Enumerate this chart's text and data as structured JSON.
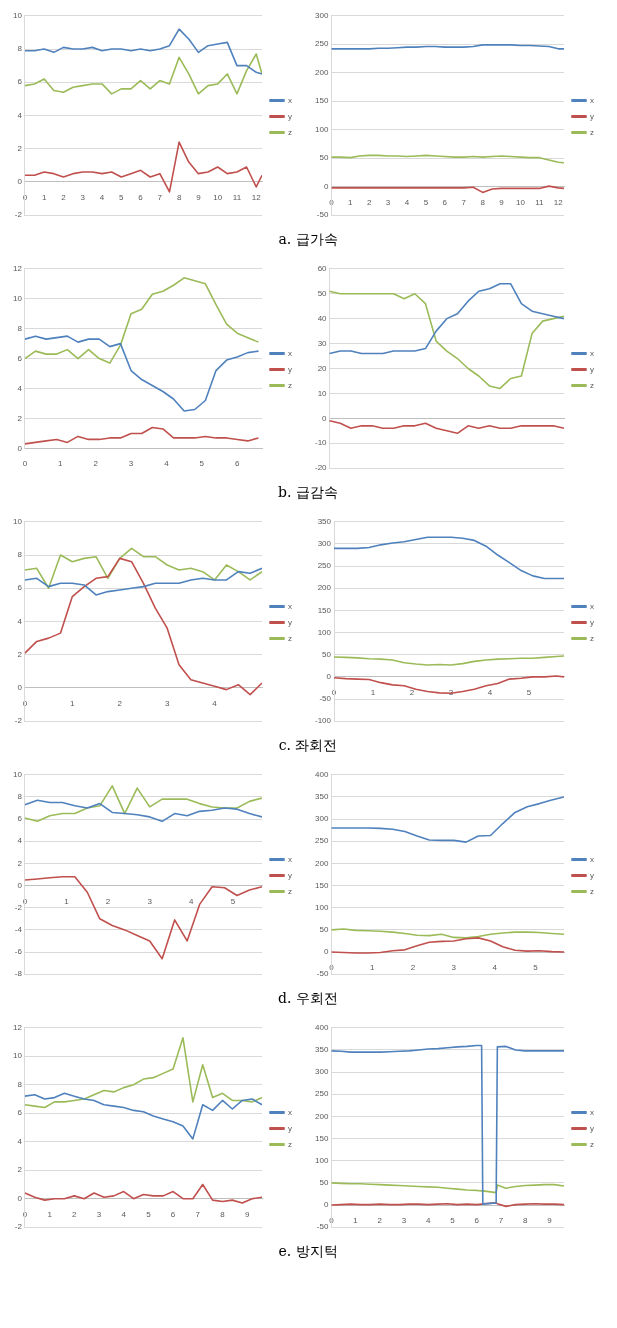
{
  "chart_data": [
    {
      "type": "line",
      "x": [
        0,
        0.5,
        1,
        1.5,
        2,
        2.5,
        3,
        3.5,
        4,
        4.5,
        5,
        5.5,
        6,
        6.5,
        7,
        7.5,
        8,
        8.5,
        9,
        9.5,
        10,
        10.5,
        11,
        11.5,
        12,
        12.3
      ],
      "xlim": [
        0,
        12.3
      ],
      "xticks": [
        0,
        1,
        2,
        3,
        4,
        5,
        6,
        7,
        8,
        9,
        10,
        11,
        12
      ],
      "ylim": [
        -2,
        10
      ],
      "yticks": [
        -2,
        0,
        2,
        4,
        6,
        8,
        10
      ],
      "grid": "y",
      "legend": "right",
      "marker": "none",
      "line_style": "solid",
      "annotations": [
        "a. 급가속"
      ],
      "series": [
        {
          "name": "x",
          "color": "#4f81bd",
          "values": [
            7.9,
            7.9,
            8.0,
            7.8,
            8.1,
            8.0,
            8.0,
            8.1,
            7.9,
            8.0,
            8.0,
            7.9,
            8.0,
            7.9,
            8.0,
            8.2,
            9.2,
            8.6,
            7.8,
            8.2,
            8.3,
            8.4,
            7.0,
            7.0,
            6.6,
            6.5
          ]
        },
        {
          "name": "y",
          "color": "#c0504d",
          "values": [
            0.4,
            0.4,
            0.6,
            0.5,
            0.3,
            0.5,
            0.6,
            0.6,
            0.5,
            0.6,
            0.3,
            0.5,
            0.7,
            0.3,
            0.5,
            -0.6,
            2.4,
            1.2,
            0.5,
            0.6,
            0.9,
            0.5,
            0.6,
            0.9,
            -0.3,
            0.4
          ]
        },
        {
          "name": "z",
          "color": "#9bbb59",
          "values": [
            5.8,
            5.9,
            6.2,
            5.5,
            5.4,
            5.7,
            5.8,
            5.9,
            5.9,
            5.3,
            5.6,
            5.6,
            6.1,
            5.6,
            6.1,
            5.9,
            7.5,
            6.5,
            5.3,
            5.8,
            5.9,
            6.5,
            5.3,
            6.7,
            7.7,
            6.5
          ]
        }
      ]
    },
    {
      "type": "line",
      "x": [
        0,
        0.5,
        1,
        1.5,
        2,
        2.5,
        3,
        3.5,
        4,
        4.5,
        5,
        5.5,
        6,
        6.5,
        7,
        7.5,
        8,
        8.5,
        9,
        9.5,
        10,
        10.5,
        11,
        11.5,
        12,
        12.3
      ],
      "xlim": [
        0,
        12.3
      ],
      "xticks": [
        0,
        1,
        2,
        3,
        4,
        5,
        6,
        7,
        8,
        9,
        10,
        11,
        12
      ],
      "ylim": [
        -50,
        300
      ],
      "yticks": [
        -50,
        0,
        50,
        100,
        150,
        200,
        250,
        300
      ],
      "grid": "y",
      "legend": "right",
      "marker": "none",
      "line_style": "solid",
      "series": [
        {
          "name": "x",
          "color": "#4f81bd",
          "values": [
            242,
            242,
            242,
            242,
            242,
            243,
            243,
            244,
            245,
            245,
            246,
            246,
            245,
            245,
            245,
            246,
            249,
            249,
            249,
            249,
            248,
            248,
            247,
            246,
            242,
            242
          ]
        },
        {
          "name": "y",
          "color": "#c0504d",
          "values": [
            -2,
            -2,
            -2,
            -2,
            -2,
            -2,
            -2,
            -2,
            -2,
            -2,
            -2,
            -2,
            -2,
            -2,
            -2,
            -1,
            -10,
            -4,
            -3,
            -3,
            -3,
            -3,
            -3,
            1,
            -2,
            -3
          ]
        },
        {
          "name": "z",
          "color": "#9bbb59",
          "values": [
            52,
            52,
            51,
            54,
            55,
            55,
            54,
            54,
            53,
            54,
            55,
            54,
            53,
            52,
            52,
            53,
            52,
            53,
            54,
            53,
            52,
            51,
            51,
            47,
            43,
            42
          ]
        }
      ]
    },
    {
      "type": "line",
      "x": [
        0,
        0.3,
        0.6,
        0.9,
        1.2,
        1.5,
        1.8,
        2.1,
        2.4,
        2.7,
        3.0,
        3.3,
        3.6,
        3.9,
        4.2,
        4.5,
        4.8,
        5.1,
        5.4,
        5.7,
        6.0,
        6.3,
        6.6
      ],
      "xlim": [
        0,
        6.7
      ],
      "xticks": [
        0,
        1,
        2,
        3,
        4,
        5,
        6
      ],
      "ylim": [
        0,
        12
      ],
      "yticks": [
        0,
        2,
        4,
        6,
        8,
        10,
        12
      ],
      "grid": "y",
      "legend": "right",
      "marker": "none",
      "line_style": "solid",
      "annotations": [
        "b. 급감속"
      ],
      "series": [
        {
          "name": "x",
          "color": "#4f81bd",
          "values": [
            7.3,
            7.5,
            7.3,
            7.4,
            7.5,
            7.1,
            7.3,
            7.3,
            6.8,
            7.0,
            5.2,
            4.6,
            4.2,
            3.8,
            3.3,
            2.5,
            2.6,
            3.2,
            5.2,
            5.9,
            6.1,
            6.4,
            6.5
          ]
        },
        {
          "name": "y",
          "color": "#c0504d",
          "values": [
            0.3,
            0.4,
            0.5,
            0.6,
            0.4,
            0.8,
            0.6,
            0.6,
            0.7,
            0.7,
            1.0,
            1.0,
            1.4,
            1.3,
            0.7,
            0.7,
            0.7,
            0.8,
            0.7,
            0.7,
            0.6,
            0.5,
            0.7
          ]
        },
        {
          "name": "z",
          "color": "#9bbb59",
          "values": [
            6.0,
            6.5,
            6.3,
            6.3,
            6.6,
            6.0,
            6.6,
            6.0,
            5.7,
            6.9,
            9.0,
            9.3,
            10.3,
            10.5,
            10.9,
            11.4,
            11.2,
            11.0,
            9.6,
            8.3,
            7.7,
            7.4,
            7.1
          ]
        }
      ]
    },
    {
      "type": "line",
      "categories": [
        null,
        null,
        null,
        null,
        null,
        null,
        null,
        null,
        null,
        null,
        null,
        null,
        null,
        null,
        null,
        null,
        null,
        null,
        null,
        null,
        null,
        null,
        null
      ],
      "ylim": [
        -20,
        60
      ],
      "yticks": [
        -20,
        -10,
        0,
        10,
        20,
        30,
        40,
        50,
        60
      ],
      "grid": "y",
      "legend": "right",
      "marker": "none",
      "line_style": "solid",
      "series": [
        {
          "name": "x",
          "color": "#4f81bd",
          "values": [
            26,
            27,
            27,
            26,
            26,
            26,
            27,
            27,
            27,
            28,
            35,
            40,
            42,
            47,
            51,
            52,
            54,
            54,
            46,
            43,
            42,
            41,
            40
          ]
        },
        {
          "name": "y",
          "color": "#c0504d",
          "values": [
            -1,
            -2,
            -4,
            -3,
            -3,
            -4,
            -4,
            -3,
            -3,
            -2,
            -4,
            -5,
            -6,
            -3,
            -4,
            -3,
            -4,
            -4,
            -3,
            -3,
            -3,
            -3,
            -4
          ]
        },
        {
          "name": "z",
          "color": "#9bbb59",
          "values": [
            51,
            50,
            50,
            50,
            50,
            50,
            50,
            48,
            50,
            46,
            31,
            27,
            24,
            20,
            17,
            13,
            12,
            16,
            17,
            34,
            39,
            40,
            41
          ]
        }
      ]
    },
    {
      "type": "line",
      "x": [
        0,
        0.25,
        0.5,
        0.75,
        1,
        1.25,
        1.5,
        1.75,
        2,
        2.25,
        2.5,
        2.75,
        3,
        3.25,
        3.5,
        3.75,
        4,
        4.25,
        4.5,
        4.75,
        5
      ],
      "xlim": [
        0,
        5
      ],
      "xticks": [
        0,
        1,
        2,
        3,
        4
      ],
      "ylim": [
        -2,
        10
      ],
      "yticks": [
        -2,
        0,
        2,
        4,
        6,
        8,
        10
      ],
      "grid": "y",
      "legend": "right",
      "marker": "none",
      "line_style": "solid",
      "annotations": [
        "c. 좌회전"
      ],
      "series": [
        {
          "name": "x",
          "color": "#4f81bd",
          "values": [
            6.5,
            6.6,
            6.1,
            6.3,
            6.3,
            6.2,
            5.6,
            5.8,
            5.9,
            6.0,
            6.1,
            6.3,
            6.3,
            6.3,
            6.5,
            6.6,
            6.5,
            6.5,
            7.0,
            6.9,
            7.2
          ]
        },
        {
          "name": "y",
          "color": "#c0504d",
          "values": [
            2.1,
            2.8,
            3.0,
            3.3,
            5.5,
            6.1,
            6.6,
            6.7,
            7.8,
            7.6,
            6.3,
            4.8,
            3.6,
            1.4,
            0.5,
            0.3,
            0.1,
            -0.1,
            0.2,
            -0.4,
            0.3
          ]
        },
        {
          "name": "z",
          "color": "#9bbb59",
          "values": [
            7.1,
            7.2,
            6.0,
            8.0,
            7.6,
            7.8,
            7.9,
            6.6,
            7.8,
            8.4,
            7.9,
            7.9,
            7.4,
            7.1,
            7.2,
            7.0,
            6.5,
            7.4,
            7.0,
            6.5,
            7.0
          ]
        }
      ]
    },
    {
      "type": "line",
      "x": [
        0,
        0.3,
        0.6,
        0.9,
        1.2,
        1.5,
        1.8,
        2.1,
        2.4,
        2.7,
        3.0,
        3.3,
        3.6,
        3.9,
        4.2,
        4.5,
        4.8,
        5.1,
        5.4,
        5.7,
        5.9
      ],
      "xlim": [
        0,
        5.9
      ],
      "xticks": [
        0,
        1,
        2,
        3,
        4,
        5
      ],
      "ylim": [
        -100,
        350
      ],
      "yticks": [
        -100,
        -50,
        0,
        50,
        100,
        150,
        200,
        250,
        300,
        350
      ],
      "grid": "y",
      "legend": "right",
      "marker": "none",
      "line_style": "solid",
      "series": [
        {
          "name": "x",
          "color": "#4f81bd",
          "values": [
            290,
            290,
            290,
            292,
            298,
            302,
            305,
            310,
            315,
            315,
            315,
            313,
            308,
            295,
            275,
            258,
            240,
            228,
            222,
            222,
            222
          ]
        },
        {
          "name": "y",
          "color": "#c0504d",
          "values": [
            -2,
            -4,
            -5,
            -6,
            -13,
            -18,
            -20,
            -28,
            -33,
            -36,
            -37,
            -33,
            -28,
            -20,
            -15,
            -5,
            -3,
            0,
            0,
            2,
            0
          ]
        },
        {
          "name": "z",
          "color": "#9bbb59",
          "values": [
            45,
            44,
            43,
            41,
            40,
            38,
            32,
            29,
            27,
            28,
            27,
            30,
            35,
            38,
            40,
            41,
            42,
            42,
            44,
            46,
            47
          ]
        }
      ]
    },
    {
      "type": "line",
      "x": [
        0,
        0.3,
        0.6,
        0.9,
        1.2,
        1.5,
        1.8,
        2.1,
        2.4,
        2.7,
        3.0,
        3.3,
        3.6,
        3.9,
        4.2,
        4.5,
        4.8,
        5.1,
        5.4,
        5.7
      ],
      "xlim": [
        0,
        5.7
      ],
      "xticks": [
        0,
        1,
        2,
        3,
        4,
        5
      ],
      "ylim": [
        -8,
        10
      ],
      "yticks": [
        -8,
        -6,
        -4,
        -2,
        0,
        2,
        4,
        6,
        8,
        10
      ],
      "grid": "y",
      "legend": "right",
      "marker": "none",
      "line_style": "solid",
      "annotations": [
        "d. 우회전"
      ],
      "series": [
        {
          "name": "x",
          "color": "#4f81bd",
          "values": [
            7.3,
            7.7,
            7.5,
            7.5,
            7.2,
            7.0,
            7.4,
            6.6,
            6.5,
            6.4,
            6.2,
            5.8,
            6.5,
            6.3,
            6.7,
            6.8,
            7.0,
            6.9,
            6.5,
            6.2
          ]
        },
        {
          "name": "y",
          "color": "#c0504d",
          "values": [
            0.5,
            0.6,
            0.7,
            0.8,
            0.8,
            -0.6,
            -3.0,
            -3.6,
            -4.0,
            -4.5,
            -5.0,
            -6.6,
            -3.1,
            -5.0,
            -1.7,
            -0.1,
            -0.2,
            -0.9,
            -0.4,
            -0.1
          ]
        },
        {
          "name": "z",
          "color": "#9bbb59",
          "values": [
            6.1,
            5.8,
            6.3,
            6.5,
            6.5,
            7.0,
            7.2,
            9.0,
            6.5,
            8.8,
            7.1,
            7.8,
            7.8,
            7.8,
            7.4,
            7.1,
            7.0,
            7.0,
            7.6,
            7.9
          ]
        }
      ]
    },
    {
      "type": "line",
      "x": [
        0,
        0.3,
        0.6,
        0.9,
        1.2,
        1.5,
        1.8,
        2.1,
        2.4,
        2.7,
        3.0,
        3.3,
        3.6,
        3.9,
        4.2,
        4.5,
        4.8,
        5.1,
        5.4,
        5.7
      ],
      "xlim": [
        0,
        5.7
      ],
      "xticks": [
        0,
        1,
        2,
        3,
        4,
        5
      ],
      "ylim": [
        -50,
        400
      ],
      "yticks": [
        -50,
        0,
        50,
        100,
        150,
        200,
        250,
        300,
        350,
        400
      ],
      "grid": "y",
      "legend": "right",
      "marker": "none",
      "line_style": "solid",
      "series": [
        {
          "name": "x",
          "color": "#4f81bd",
          "values": [
            280,
            280,
            280,
            280,
            279,
            277,
            272,
            262,
            253,
            252,
            252,
            248,
            262,
            263,
            290,
            315,
            328,
            335,
            343,
            350
          ]
        },
        {
          "name": "y",
          "color": "#c0504d",
          "values": [
            0,
            -1,
            -2,
            -2,
            -1,
            3,
            5,
            14,
            22,
            24,
            25,
            30,
            32,
            25,
            12,
            4,
            2,
            3,
            1,
            0
          ]
        },
        {
          "name": "z",
          "color": "#9bbb59",
          "values": [
            50,
            52,
            49,
            48,
            47,
            45,
            42,
            38,
            37,
            40,
            33,
            32,
            35,
            40,
            43,
            45,
            45,
            44,
            42,
            40
          ]
        }
      ]
    },
    {
      "type": "line",
      "x": [
        0,
        0.4,
        0.8,
        1.2,
        1.6,
        2,
        2.4,
        2.8,
        3.2,
        3.6,
        4,
        4.4,
        4.8,
        5.2,
        5.6,
        6,
        6.4,
        6.8,
        7.2,
        7.6,
        8,
        8.4,
        8.8,
        9.2,
        9.6
      ],
      "xlim": [
        0,
        9.6
      ],
      "xticks": [
        0,
        1,
        2,
        3,
        4,
        5,
        6,
        7,
        8,
        9
      ],
      "ylim": [
        -2,
        12
      ],
      "yticks": [
        -2,
        0,
        2,
        4,
        6,
        8,
        10,
        12
      ],
      "grid": "y",
      "legend": "right",
      "marker": "none",
      "line_style": "solid",
      "annotations": [
        "e. 방지턱"
      ],
      "series": [
        {
          "name": "x",
          "color": "#4f81bd",
          "values": [
            7.2,
            7.3,
            7.0,
            7.1,
            7.4,
            7.2,
            7.0,
            6.9,
            6.6,
            6.5,
            6.4,
            6.2,
            6.1,
            5.8,
            5.6,
            5.4,
            5.1,
            4.2,
            6.6,
            6.2,
            6.9,
            6.3,
            6.9,
            7.0,
            6.6
          ]
        },
        {
          "name": "y",
          "color": "#c0504d",
          "values": [
            0.4,
            0.1,
            -0.1,
            0.0,
            0.0,
            0.2,
            0.0,
            0.4,
            0.1,
            0.2,
            0.5,
            0.0,
            0.3,
            0.2,
            0.2,
            0.5,
            0.0,
            0.0,
            1.0,
            -0.1,
            -0.2,
            -0.1,
            -0.3,
            0.0,
            0.1
          ]
        },
        {
          "name": "z",
          "color": "#9bbb59",
          "values": [
            6.6,
            6.5,
            6.4,
            6.8,
            6.8,
            6.9,
            7.0,
            7.3,
            7.6,
            7.5,
            7.8,
            8.0,
            8.4,
            8.5,
            8.8,
            9.1,
            11.3,
            6.8,
            9.4,
            7.1,
            7.4,
            6.9,
            6.9,
            6.8,
            7.1
          ]
        }
      ]
    },
    {
      "type": "line",
      "x": [
        0,
        0.4,
        0.8,
        1.2,
        1.6,
        2,
        2.4,
        2.8,
        3.2,
        3.6,
        4,
        4.4,
        4.8,
        5.2,
        5.6,
        6,
        6.2,
        6.25,
        6.8,
        6.85,
        7.2,
        7.6,
        8,
        8.4,
        8.8,
        9.2,
        9.6
      ],
      "xlim": [
        0,
        9.6
      ],
      "xticks": [
        0,
        1,
        2,
        3,
        4,
        5,
        6,
        7,
        8,
        9
      ],
      "ylim": [
        -50,
        400
      ],
      "yticks": [
        -50,
        0,
        50,
        100,
        150,
        200,
        250,
        300,
        350,
        400
      ],
      "grid": "y",
      "legend": "right",
      "marker": "none",
      "line_style": "solid",
      "series": [
        {
          "name": "x",
          "color": "#4f81bd",
          "values": [
            348,
            347,
            345,
            345,
            345,
            345,
            346,
            347,
            348,
            350,
            352,
            353,
            355,
            357,
            358,
            360,
            360,
            2,
            5,
            357,
            358,
            350,
            348,
            348,
            348,
            348,
            348
          ]
        },
        {
          "name": "y",
          "color": "#c0504d",
          "values": [
            0,
            1,
            2,
            1,
            1,
            2,
            1,
            1,
            2,
            2,
            1,
            2,
            3,
            1,
            2,
            1,
            2,
            3,
            5,
            3,
            -3,
            1,
            2,
            3,
            2,
            2,
            1
          ]
        },
        {
          "name": "z",
          "color": "#9bbb59",
          "values": [
            50,
            49,
            48,
            48,
            47,
            46,
            45,
            44,
            43,
            42,
            41,
            40,
            38,
            36,
            34,
            33,
            32,
            32,
            28,
            45,
            38,
            42,
            44,
            45,
            46,
            46,
            43
          ]
        }
      ]
    }
  ]
}
